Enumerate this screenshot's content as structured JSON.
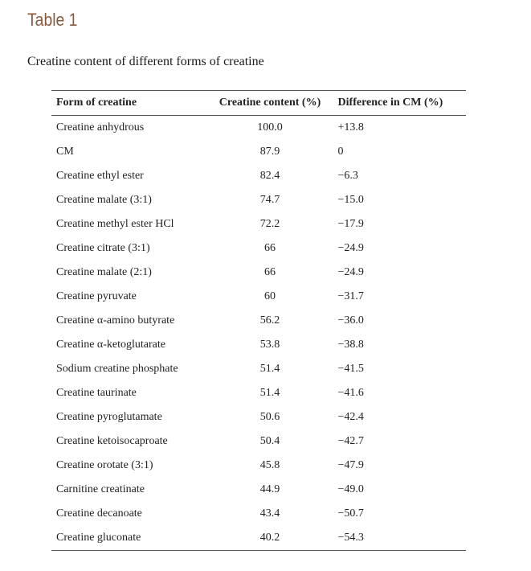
{
  "table_label": "Table 1",
  "caption": "Creatine content of different forms of creatine",
  "columns": {
    "form": "Form of creatine",
    "content": "Creatine content (%)",
    "difference": "Difference in CM (%)"
  },
  "rows": [
    {
      "form": "Creatine anhydrous",
      "content": "100.0",
      "difference": "+13.8"
    },
    {
      "form": "CM",
      "content": "87.9",
      "difference": "0"
    },
    {
      "form": "Creatine ethyl ester",
      "content": "82.4",
      "difference": "−6.3"
    },
    {
      "form": "Creatine malate (3:1)",
      "content": "74.7",
      "difference": "−15.0"
    },
    {
      "form": "Creatine methyl ester HCl",
      "content": "72.2",
      "difference": "−17.9"
    },
    {
      "form": "Creatine citrate (3:1)",
      "content": "66",
      "difference": "−24.9"
    },
    {
      "form": "Creatine malate (2:1)",
      "content": "66",
      "difference": "−24.9"
    },
    {
      "form": "Creatine pyruvate",
      "content": "60",
      "difference": "−31.7"
    },
    {
      "form": "Creatine α-amino butyrate",
      "content": "56.2",
      "difference": "−36.0"
    },
    {
      "form": "Creatine α-ketoglutarate",
      "content": "53.8",
      "difference": "−38.8"
    },
    {
      "form": "Sodium creatine phosphate",
      "content": "51.4",
      "difference": "−41.5"
    },
    {
      "form": "Creatine taurinate",
      "content": "51.4",
      "difference": "−41.6"
    },
    {
      "form": "Creatine pyroglutamate",
      "content": "50.6",
      "difference": "−42.4"
    },
    {
      "form": "Creatine ketoisocaproate",
      "content": "50.4",
      "difference": "−42.7"
    },
    {
      "form": "Creatine orotate (3:1)",
      "content": "45.8",
      "difference": "−47.9"
    },
    {
      "form": "Carnitine creatinate",
      "content": "44.9",
      "difference": "−49.0"
    },
    {
      "form": "Creatine decanoate",
      "content": "43.4",
      "difference": "−50.7"
    },
    {
      "form": "Creatine gluconate",
      "content": "40.2",
      "difference": "−54.3"
    }
  ]
}
